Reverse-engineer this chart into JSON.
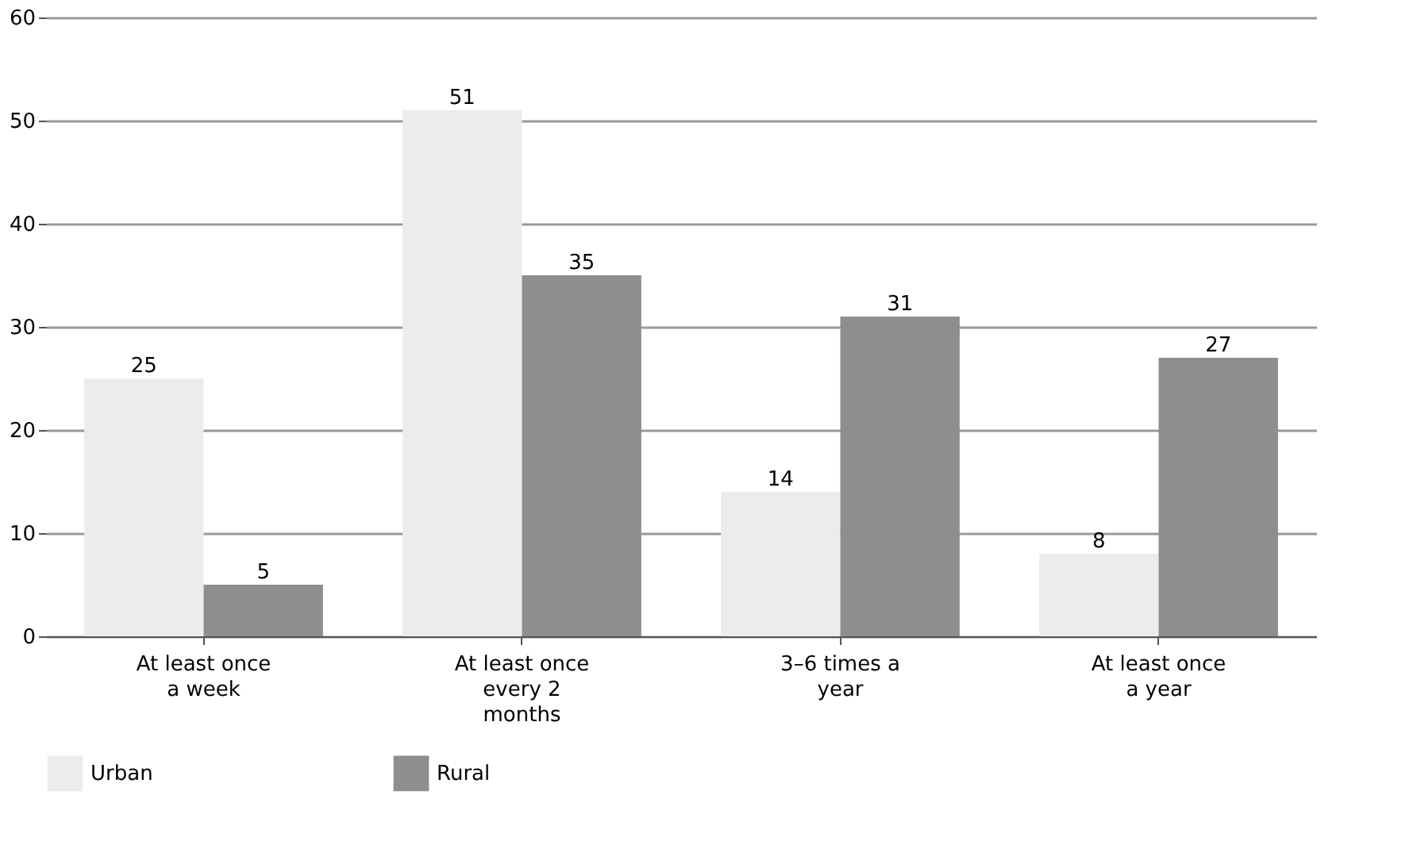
{
  "chart_data": {
    "type": "bar",
    "categories": [
      "At least once a week",
      "At least once every 2 months",
      "3–6 times a year",
      "At least once a year"
    ],
    "series": [
      {
        "name": "Urban",
        "color": "#ececec",
        "values": [
          25,
          51,
          14,
          8
        ]
      },
      {
        "name": "Rural",
        "color": "#8e8e8e",
        "values": [
          5,
          35,
          31,
          27
        ]
      }
    ],
    "ylim": [
      0,
      60
    ],
    "yticks": [
      0,
      10,
      20,
      30,
      40,
      50,
      60
    ],
    "grid": "y",
    "legend": "bottom",
    "data_labels": true
  }
}
